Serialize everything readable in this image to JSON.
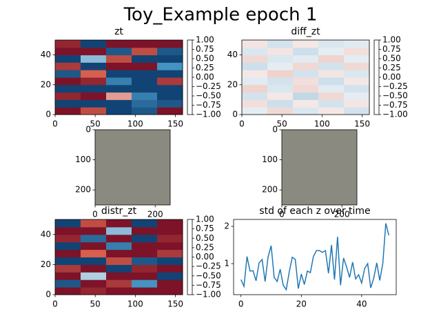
{
  "title": "Toy_Example epoch 1",
  "chart_data": [
    {
      "type": "heatmap",
      "title": "zt",
      "colormap": "RdBu",
      "xlim": [
        0,
        159
      ],
      "ylim": [
        0,
        50
      ],
      "xticks": [
        0,
        50,
        100,
        150
      ],
      "yticks": [
        0,
        20,
        40
      ],
      "values": [
        [
          -0.9,
          -0.6,
          0.9,
          0.8,
          -0.9
        ],
        [
          0.9,
          0.9,
          0.9,
          0.7,
          0.8
        ],
        [
          -0.8,
          -0.9,
          -0.3,
          0.6,
          0.9
        ],
        [
          0.9,
          0.9,
          0.9,
          0.9,
          0.9
        ],
        [
          -0.9,
          -0.8,
          0.6,
          0.9,
          -0.7
        ],
        [
          0.8,
          -0.5,
          0.9,
          0.9,
          0.9
        ],
        [
          -0.7,
          0.9,
          -0.9,
          -0.9,
          0.5
        ],
        [
          0.9,
          0.3,
          -0.6,
          0.9,
          0.9
        ],
        [
          -0.9,
          -0.9,
          0.8,
          -0.6,
          0.8
        ],
        [
          -0.8,
          0.9,
          -0.9,
          -0.9,
          -0.9
        ]
      ],
      "colorbar": {
        "lim": [
          -1,
          1
        ],
        "ticks": [
          {
            "value": 1,
            "label": "1.00"
          },
          {
            "value": 0.75,
            "label": "0.75"
          },
          {
            "value": 0.5,
            "label": "0.50"
          },
          {
            "value": 0.25,
            "label": "0.25"
          },
          {
            "value": 0,
            "label": "0.00"
          },
          {
            "value": -0.25,
            "label": "−0.25"
          },
          {
            "value": -0.5,
            "label": "−0.50"
          },
          {
            "value": -0.75,
            "label": "−0.75"
          },
          {
            "value": -1,
            "label": "−1.00"
          }
        ]
      }
    },
    {
      "type": "heatmap",
      "title": "diff_zt",
      "colormap": "RdBu",
      "xlim": [
        0,
        159
      ],
      "ylim": [
        0,
        50
      ],
      "xticks": [
        0,
        50,
        100,
        150
      ],
      "yticks": [
        0,
        20,
        40
      ],
      "values": [
        [
          0.05,
          -0.1,
          0.08,
          -0.05,
          0.1
        ],
        [
          -0.08,
          0.12,
          -0.05,
          0.1,
          -0.06
        ],
        [
          0.1,
          -0.05,
          0.15,
          -0.1,
          0.05
        ],
        [
          -0.12,
          0.08,
          -0.1,
          0.06,
          0.1
        ],
        [
          0.06,
          0.1,
          -0.08,
          0.12,
          -0.05
        ],
        [
          -0.05,
          -0.12,
          0.1,
          -0.06,
          0.08
        ],
        [
          0.12,
          0.05,
          -0.1,
          0.1,
          -0.1
        ],
        [
          -0.1,
          0.08,
          0.06,
          -0.12,
          0.05
        ],
        [
          0.08,
          -0.06,
          0.12,
          0.05,
          -0.08
        ],
        [
          -0.06,
          0.1,
          -0.05,
          0.08,
          0.06
        ]
      ],
      "colorbar": {
        "lim": [
          -1,
          1
        ],
        "ticks": [
          {
            "value": 1,
            "label": "1.00"
          },
          {
            "value": 0.75,
            "label": "0.75"
          },
          {
            "value": 0.5,
            "label": "0.50"
          },
          {
            "value": 0.25,
            "label": "0.25"
          },
          {
            "value": 0,
            "label": "0.00"
          },
          {
            "value": -0.25,
            "label": "−0.25"
          },
          {
            "value": -0.5,
            "label": "−0.50"
          },
          {
            "value": -0.75,
            "label": "−0.75"
          },
          {
            "value": -1,
            "label": "−1.00"
          }
        ]
      }
    },
    {
      "type": "image",
      "color": "#8a8a80",
      "xlim": [
        0,
        250
      ],
      "ylim": [
        250,
        0
      ],
      "xticks": [
        0,
        200
      ],
      "yticks": [
        0,
        100,
        200
      ]
    },
    {
      "type": "image",
      "color": "#8a8a80",
      "xlim": [
        0,
        250
      ],
      "ylim": [
        250,
        0
      ],
      "xticks": [
        0,
        200
      ],
      "yticks": [
        0,
        100,
        200
      ]
    },
    {
      "type": "heatmap",
      "title": "distr_zt",
      "colormap": "RdBu",
      "xlim": [
        0,
        159
      ],
      "ylim": [
        0,
        50
      ],
      "xticks": [
        0,
        50,
        100,
        150
      ],
      "yticks": [
        0,
        20,
        40
      ],
      "values": [
        [
          -0.9,
          -0.8,
          -0.9,
          -0.9,
          -0.9
        ],
        [
          0.8,
          -0.9,
          -0.7,
          0.5,
          -0.9
        ],
        [
          -0.9,
          0.2,
          -0.9,
          -0.9,
          0.9
        ],
        [
          -0.7,
          -0.9,
          0.9,
          -0.8,
          -0.9
        ],
        [
          0.9,
          0.9,
          -0.6,
          0.8,
          0.9
        ],
        [
          -0.9,
          -0.5,
          -0.9,
          -0.9,
          -0.7
        ],
        [
          0.9,
          -0.9,
          0.6,
          -0.9,
          -0.9
        ],
        [
          -0.8,
          0.7,
          -0.9,
          0.9,
          -0.8
        ],
        [
          -0.9,
          -0.9,
          0.3,
          -0.9,
          -0.9
        ],
        [
          0.9,
          -0.6,
          -0.9,
          0.9,
          -0.9
        ]
      ],
      "colorbar": {
        "lim": [
          -1,
          1
        ],
        "ticks": [
          {
            "value": 1,
            "label": "1.00"
          },
          {
            "value": 0.75,
            "label": "0.75"
          },
          {
            "value": 0.5,
            "label": "0.50"
          },
          {
            "value": 0.25,
            "label": "0.25"
          },
          {
            "value": 0,
            "label": "0.00"
          },
          {
            "value": -0.25,
            "label": "−0.25"
          },
          {
            "value": -0.5,
            "label": "−0.50"
          },
          {
            "value": -0.75,
            "label": "−0.75"
          },
          {
            "value": -1,
            "label": "−1.00"
          }
        ]
      }
    },
    {
      "type": "line",
      "title": "std of each z over time",
      "color": "#1f77b4",
      "xlim": [
        -2.45,
        51.45
      ],
      "ylim": [
        0.167,
        2.185
      ],
      "xticks": [
        0,
        20,
        40
      ],
      "yticks": [
        1,
        2
      ],
      "x": [
        0,
        1,
        2,
        3,
        4,
        5,
        6,
        7,
        8,
        9,
        10,
        11,
        12,
        13,
        14,
        15,
        16,
        17,
        18,
        19,
        20,
        21,
        22,
        23,
        24,
        25,
        26,
        27,
        28,
        29,
        30,
        31,
        32,
        33,
        34,
        35,
        36,
        37,
        38,
        39,
        40,
        41,
        42,
        43,
        44,
        45,
        46,
        47,
        48,
        49
      ],
      "values": [
        0.57,
        0.39,
        1.19,
        0.8,
        0.81,
        0.54,
        1.02,
        1.11,
        0.52,
        1.19,
        1.48,
        0.63,
        0.52,
        0.85,
        0.42,
        0.3,
        0.78,
        1.17,
        1.11,
        0.33,
        0.72,
        0.44,
        0.8,
        0.76,
        1.19,
        1.35,
        1.35,
        1.3,
        1.35,
        0.74,
        1.5,
        0.57,
        1.72,
        0.42,
        1.15,
        0.91,
        0.63,
        1.04,
        0.59,
        0.7,
        0.48,
        0.87,
        1.0,
        0.35,
        0.61,
        1.02,
        0.55,
        1.0,
        2.08,
        1.76
      ]
    }
  ]
}
